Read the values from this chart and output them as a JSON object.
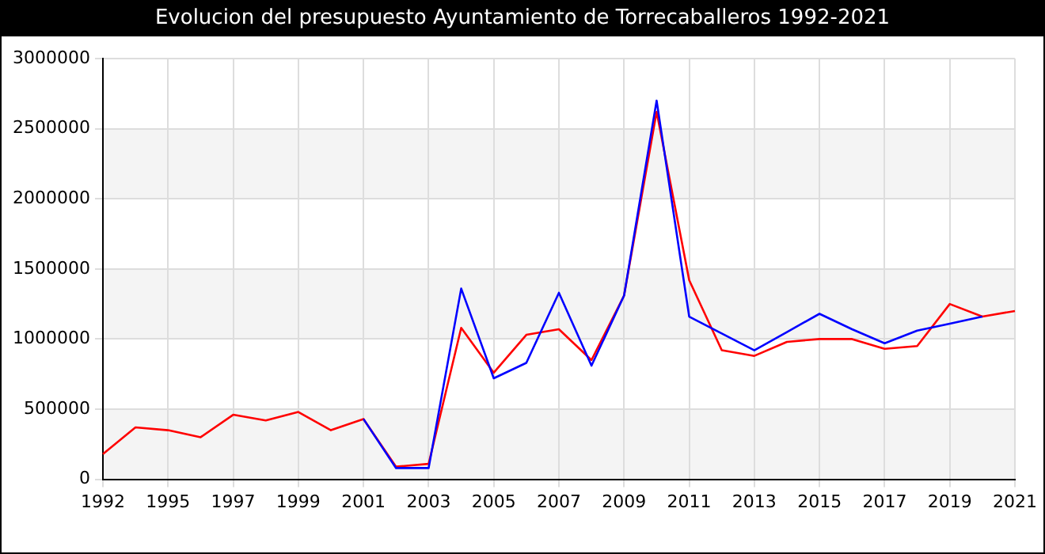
{
  "chart_data": {
    "type": "line",
    "title": "Evolucion del presupuesto Ayuntamiento de Torrecaballeros 1992-2021",
    "categories": [
      "1992",
      null,
      "1995",
      null,
      "1997",
      null,
      "1999",
      null,
      "2001",
      null,
      "2003",
      null,
      "2005",
      null,
      "2007",
      null,
      "2009",
      null,
      "2011",
      null,
      "2013",
      null,
      "2015",
      null,
      "2017",
      null,
      "2019",
      null,
      "2021"
    ],
    "series": [
      {
        "color": "#0000ff",
        "values": [
          null,
          null,
          null,
          null,
          null,
          null,
          null,
          null,
          430000,
          80000,
          80000,
          1360000,
          720000,
          830000,
          1330000,
          810000,
          1310000,
          2700000,
          1160000,
          1040000,
          920000,
          1050000,
          1180000,
          1070000,
          970000,
          1060000,
          1110000,
          1160000,
          null
        ]
      },
      {
        "color": "#ff0000",
        "values": [
          180000,
          370000,
          350000,
          300000,
          460000,
          420000,
          480000,
          350000,
          430000,
          90000,
          110000,
          1080000,
          760000,
          1030000,
          1070000,
          850000,
          1310000,
          2620000,
          1420000,
          920000,
          880000,
          980000,
          1000000,
          1000000,
          930000,
          950000,
          1250000,
          1160000,
          1200000
        ]
      }
    ],
    "ylim": [
      0,
      3000000
    ],
    "yticks": [
      0,
      500000,
      1000000,
      1500000,
      2000000,
      2500000,
      3000000
    ],
    "grid": true,
    "legend": false,
    "marker": "none",
    "line_style": "solid"
  }
}
